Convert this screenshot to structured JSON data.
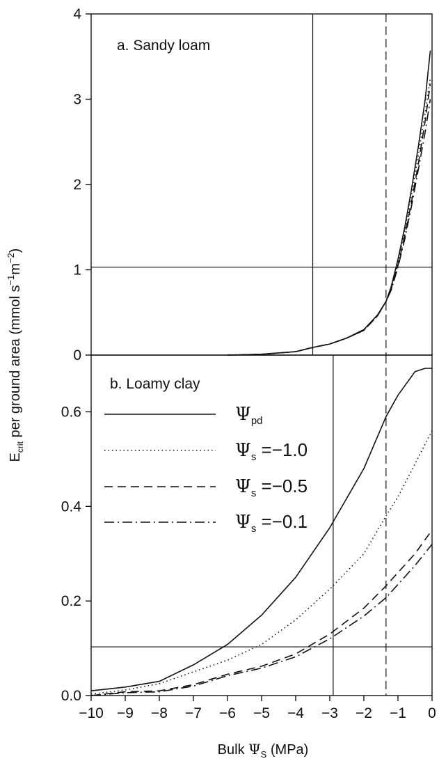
{
  "chart_data": [
    {
      "type": "line",
      "title": "a. Sandy loam",
      "xlabel": "Bulk Ψs (MPa)",
      "ylabel": "Ecrit per ground area (mmol s⁻¹m⁻²)",
      "xlim": [
        -10,
        0
      ],
      "ylim": [
        0,
        4
      ],
      "yticks": [
        "0",
        "1",
        "2",
        "3",
        "4"
      ],
      "grid": false,
      "hlines": [
        1.03
      ],
      "vlines": [
        {
          "x": -3.5,
          "style": "solid"
        },
        {
          "x": -1.35,
          "style": "dashed"
        }
      ],
      "series": [
        {
          "name": "Ψpd",
          "style": "solid",
          "x": [
            -6,
            -5,
            -4,
            -3.5,
            -3,
            -2.5,
            -2,
            -1.6,
            -1.35,
            -1.2,
            -1,
            -0.8,
            -0.6,
            -0.4,
            -0.2,
            -0.05
          ],
          "y": [
            0,
            0.01,
            0.04,
            0.09,
            0.13,
            0.2,
            0.3,
            0.47,
            0.63,
            0.8,
            1.12,
            1.5,
            1.95,
            2.45,
            3.0,
            3.57
          ]
        },
        {
          "name": "Ψs = −1.0",
          "style": "dotted",
          "x": [
            -6,
            -5,
            -4,
            -3.5,
            -3,
            -2.5,
            -2,
            -1.6,
            -1.35,
            -1.2,
            -1,
            -0.8,
            -0.6,
            -0.4,
            -0.2,
            -0.05
          ],
          "y": [
            0,
            0.01,
            0.04,
            0.09,
            0.13,
            0.2,
            0.29,
            0.46,
            0.63,
            0.78,
            1.08,
            1.45,
            1.88,
            2.35,
            2.85,
            3.25
          ]
        },
        {
          "name": "Ψs = −0.5",
          "style": "dashed",
          "x": [
            -6,
            -5,
            -4,
            -3.5,
            -3,
            -2.5,
            -2,
            -1.6,
            -1.35,
            -1.2,
            -1,
            -0.8,
            -0.6,
            -0.4,
            -0.2,
            -0.05
          ],
          "y": [
            0,
            0.01,
            0.04,
            0.09,
            0.13,
            0.2,
            0.29,
            0.46,
            0.63,
            0.77,
            1.05,
            1.4,
            1.8,
            2.25,
            2.75,
            3.18
          ]
        },
        {
          "name": "Ψs = −0.1",
          "style": "dashdot",
          "x": [
            -6,
            -5,
            -4,
            -3.5,
            -3,
            -2.5,
            -2,
            -1.6,
            -1.35,
            -1.2,
            -1,
            -0.8,
            -0.6,
            -0.4,
            -0.2,
            -0.05
          ],
          "y": [
            0,
            0.01,
            0.04,
            0.09,
            0.13,
            0.2,
            0.29,
            0.46,
            0.63,
            0.76,
            1.03,
            1.36,
            1.75,
            2.18,
            2.62,
            3.0
          ]
        }
      ]
    },
    {
      "type": "line",
      "title": "b. Loamy clay",
      "xlabel": "Bulk Ψs (MPa)",
      "ylabel": "Ecrit per ground area (mmol s⁻¹m⁻²)",
      "xlim": [
        -10,
        0
      ],
      "ylim": [
        0,
        0.72
      ],
      "xticks": [
        "−10",
        "−9",
        "−8",
        "−7",
        "−6",
        "−5",
        "−4",
        "−3",
        "−2",
        "−1",
        "0"
      ],
      "yticks": [
        "0.0",
        "0.2",
        "0.4",
        "0.6"
      ],
      "grid": false,
      "legend": "left",
      "hlines": [
        0.103
      ],
      "vlines": [
        {
          "x": -2.9,
          "style": "solid"
        },
        {
          "x": -1.35,
          "style": "dashed"
        }
      ],
      "series": [
        {
          "name": "Ψpd",
          "style": "solid",
          "x": [
            -10,
            -9,
            -8,
            -7,
            -6,
            -5,
            -4,
            -3,
            -2,
            -1.35,
            -1,
            -0.5,
            -0.2,
            0
          ],
          "y": [
            0.01,
            0.018,
            0.03,
            0.065,
            0.108,
            0.17,
            0.25,
            0.355,
            0.48,
            0.59,
            0.635,
            0.685,
            0.692,
            0.692
          ]
        },
        {
          "name": "Ψs = −1.0",
          "style": "dotted",
          "x": [
            -10,
            -9,
            -8,
            -7,
            -6,
            -5,
            -4,
            -3,
            -2,
            -1.35,
            -1,
            -0.5,
            0
          ],
          "y": [
            0.003,
            0.012,
            0.025,
            0.05,
            0.075,
            0.108,
            0.16,
            0.225,
            0.3,
            0.38,
            0.42,
            0.49,
            0.56
          ]
        },
        {
          "name": "Ψs = −0.5",
          "style": "dashed",
          "x": [
            -10,
            -9,
            -8,
            -7,
            -6,
            -5,
            -4,
            -3,
            -2,
            -1.35,
            -1,
            -0.5,
            0
          ],
          "y": [
            0,
            0.008,
            0.01,
            0.023,
            0.045,
            0.062,
            0.088,
            0.13,
            0.185,
            0.232,
            0.26,
            0.3,
            0.35
          ]
        },
        {
          "name": "Ψs = −0.1",
          "style": "dashdot",
          "x": [
            -10,
            -9,
            -8,
            -7,
            -6,
            -5,
            -4,
            -3,
            -2,
            -1.35,
            -1,
            -0.5,
            0
          ],
          "y": [
            0,
            0.006,
            0.008,
            0.02,
            0.042,
            0.058,
            0.082,
            0.12,
            0.168,
            0.207,
            0.235,
            0.275,
            0.32
          ]
        }
      ]
    }
  ],
  "legend_entries": [
    {
      "symbol": "Ψ",
      "sub": "pd",
      "value": ""
    },
    {
      "symbol": "Ψ",
      "sub": "s",
      "value": "=−1.0"
    },
    {
      "symbol": "Ψ",
      "sub": "s",
      "value": "=−0.5"
    },
    {
      "symbol": "Ψ",
      "sub": "s",
      "value": "=−0.1"
    }
  ],
  "labels": {
    "ylabel_main": "E",
    "ylabel_sub": "crit",
    "ylabel_rest": " per ground area (mmol s",
    "ylabel_sup1": "−1",
    "ylabel_mid": "m",
    "ylabel_sup2": "−2",
    "ylabel_end": ")",
    "xlabel_pre": "Bulk ",
    "xlabel_sym": "Ψ",
    "xlabel_sub": "S",
    "xlabel_post": " (MPa)"
  },
  "colors": {
    "line": "#111111",
    "background": "#ffffff"
  }
}
